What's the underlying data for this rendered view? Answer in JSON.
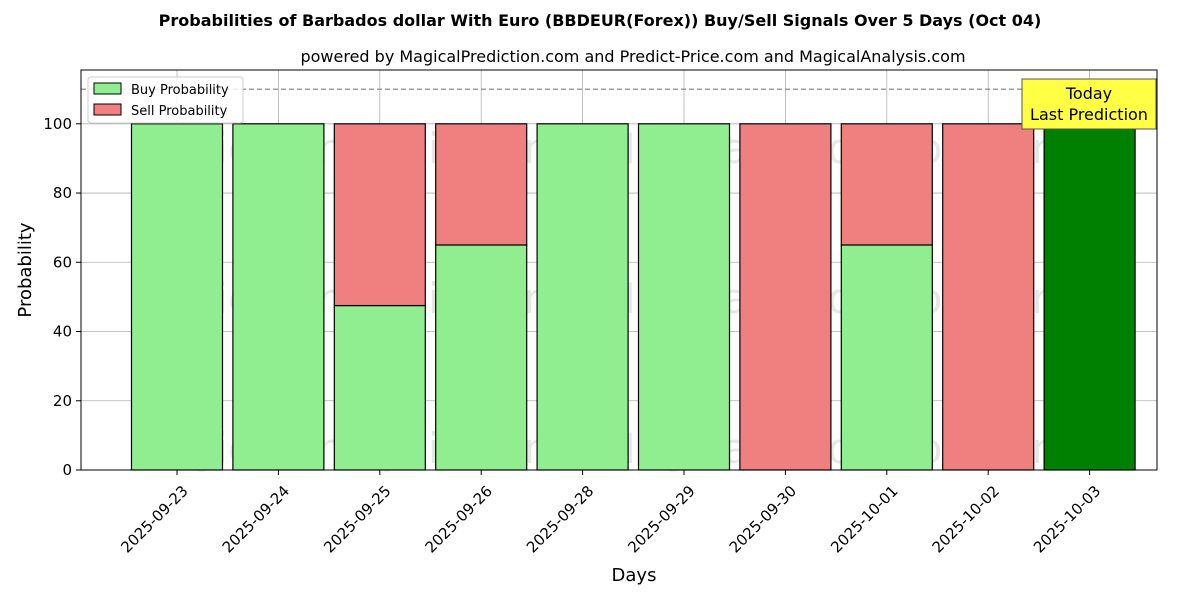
{
  "chart_data": {
    "type": "bar",
    "stacked": true,
    "title": "Probabilities of Barbados dollar With Euro (BBDEUR(Forex)) Buy/Sell Signals Over 5 Days (Oct 04)",
    "subtitle": "powered by MagicalPrediction.com and Predict-Price.com and MagicalAnalysis.com",
    "xlabel": "Days",
    "ylabel": "Probability",
    "ylim": [
      0,
      115
    ],
    "yticks": [
      0,
      20,
      40,
      60,
      80,
      100
    ],
    "grid": true,
    "reference_line": 110,
    "legend_position": "top-left",
    "categories": [
      "2025-09-23",
      "2025-09-24",
      "2025-09-25",
      "2025-09-26",
      "2025-09-28",
      "2025-09-29",
      "2025-09-30",
      "2025-10-01",
      "2025-10-02",
      "2025-10-03"
    ],
    "series": [
      {
        "name": "Buy Probability",
        "color": "#90ee90",
        "values": [
          100,
          100,
          47.5,
          65,
          100,
          100,
          0,
          65,
          0,
          100
        ]
      },
      {
        "name": "Sell Probability",
        "color": "#f08080",
        "values": [
          0,
          0,
          52.5,
          35,
          0,
          0,
          100,
          35,
          100,
          0
        ]
      }
    ],
    "highlight_color": "#008000",
    "highlight_index": 9,
    "annotation": {
      "line1": "Today",
      "line2": "Last Prediction",
      "color": "#ffff44"
    },
    "watermarks": [
      "MagicalAnalysis.com",
      "MagicalPrediction.com"
    ]
  }
}
